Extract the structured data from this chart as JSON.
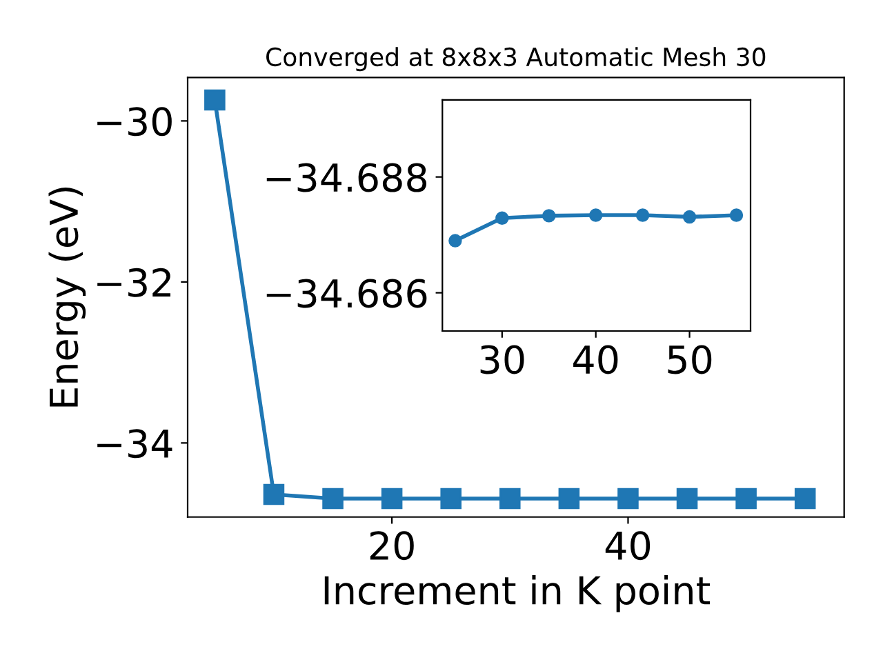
{
  "chart_data": [
    {
      "type": "line",
      "title": "Converged at 8x8x3 Automatic Mesh 30",
      "xlabel": "Increment in K point",
      "ylabel": "Energy (eV)",
      "x": [
        5,
        10,
        15,
        20,
        25,
        30,
        35,
        40,
        45,
        50,
        55
      ],
      "series": [
        {
          "color": "#1f77b4",
          "values": [
            -29.74,
            -34.64,
            -34.69,
            -34.69,
            -34.69,
            -34.69,
            -34.69,
            -34.69,
            -34.69,
            -34.69,
            -34.69
          ]
        }
      ],
      "xlim": [
        2.7,
        58.3
      ],
      "ylim": [
        -34.92,
        -29.46
      ],
      "xticks": [
        20,
        40
      ],
      "yticks": [
        -34,
        -32,
        -30
      ],
      "marker": "square",
      "line_style": "solid",
      "grid": false,
      "legend": false
    },
    {
      "type": "line",
      "x": [
        25,
        30,
        35,
        40,
        45,
        50,
        55
      ],
      "series": [
        {
          "color": "#1f77b4",
          "values": [
            -34.6869,
            -34.68729,
            -34.68733,
            -34.68734,
            -34.68734,
            -34.68731,
            -34.68734
          ]
        }
      ],
      "xlim": [
        23.63,
        56.51
      ],
      "ylim": [
        -34.68534,
        -34.68933
      ],
      "xticks": [
        30,
        40,
        50
      ],
      "yticks": [
        -34.688,
        -34.686
      ],
      "marker": "circle",
      "line_style": "solid",
      "grid": false,
      "legend": false
    }
  ]
}
